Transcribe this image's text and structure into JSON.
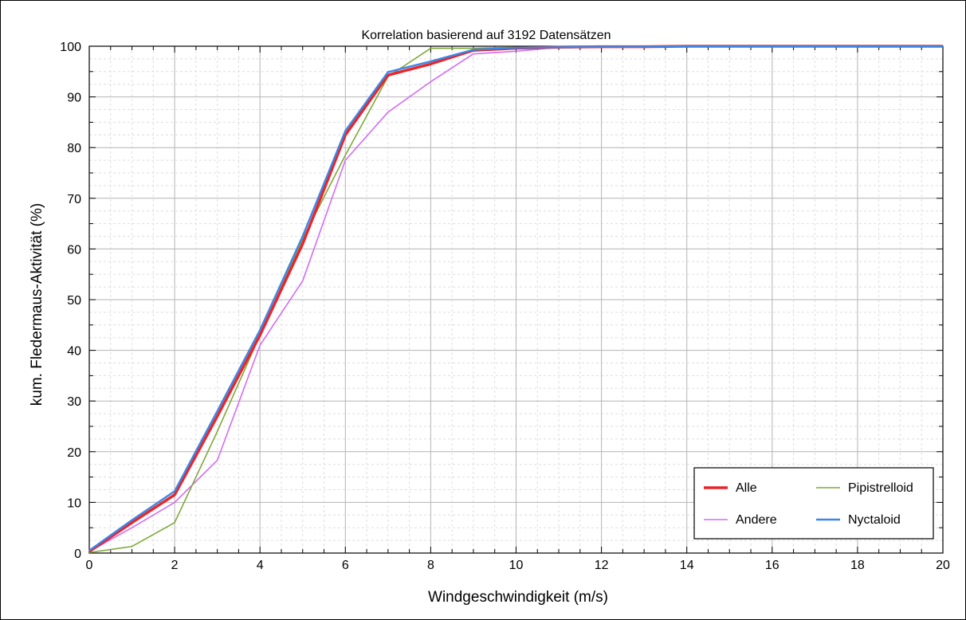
{
  "chart_data": {
    "type": "line",
    "title": "Korrelation basierend auf 3192 Datensätzen",
    "xlabel": "Windgeschwindigkeit (m/s)",
    "ylabel": "kum. Fledermaus-Aktivität (%)",
    "xlim": [
      0,
      20
    ],
    "ylim": [
      0,
      100
    ],
    "x_ticks": [
      0,
      2,
      4,
      6,
      8,
      10,
      12,
      14,
      16,
      18,
      20
    ],
    "y_ticks": [
      0,
      10,
      20,
      30,
      40,
      50,
      60,
      70,
      80,
      90,
      100
    ],
    "x_tick_labels": [
      "0",
      "2",
      "4",
      "6",
      "8",
      "10",
      "12",
      "14",
      "16",
      "18",
      "20"
    ],
    "y_tick_labels": [
      "0",
      "10",
      "20",
      "30",
      "40",
      "50",
      "60",
      "70",
      "80",
      "90",
      "100"
    ],
    "grid": true,
    "legend_position": "bottom-right",
    "series": [
      {
        "name": "Alle",
        "color": "#e8262a",
        "points": [
          [
            0,
            0.3
          ],
          [
            1,
            6
          ],
          [
            2,
            11.5
          ],
          [
            3,
            27
          ],
          [
            4,
            43
          ],
          [
            5,
            61
          ],
          [
            6,
            82.5
          ],
          [
            7,
            94.3
          ],
          [
            8,
            96.5
          ],
          [
            9,
            99.2
          ],
          [
            10,
            99.6
          ],
          [
            11,
            99.8
          ],
          [
            12,
            99.9
          ],
          [
            13,
            99.9
          ],
          [
            14,
            100
          ],
          [
            16,
            100
          ],
          [
            18,
            100
          ],
          [
            20,
            100
          ]
        ]
      },
      {
        "name": "Pipistrelloid",
        "color": "#7fa83a",
        "points": [
          [
            0,
            0.1
          ],
          [
            1,
            1.3
          ],
          [
            2,
            6
          ],
          [
            3,
            24
          ],
          [
            4,
            43
          ],
          [
            5,
            62
          ],
          [
            6,
            78.5
          ],
          [
            7,
            94
          ],
          [
            8,
            99.6
          ],
          [
            9,
            99.6
          ],
          [
            10,
            99.8
          ],
          [
            11,
            99.9
          ],
          [
            12,
            99.9
          ],
          [
            13,
            99.9
          ],
          [
            14,
            100
          ],
          [
            16,
            100
          ],
          [
            18,
            100
          ],
          [
            20,
            100
          ]
        ]
      },
      {
        "name": "Andere",
        "color": "#d36cf5",
        "points": [
          [
            0,
            0.3
          ],
          [
            1,
            5
          ],
          [
            2,
            10
          ],
          [
            3,
            18.3
          ],
          [
            4,
            41
          ],
          [
            5,
            53.7
          ],
          [
            6,
            77.5
          ],
          [
            7,
            87
          ],
          [
            8,
            93
          ],
          [
            9,
            98.5
          ],
          [
            10,
            99
          ],
          [
            11,
            99.8
          ],
          [
            12,
            99.8
          ],
          [
            13,
            99.9
          ],
          [
            14,
            100
          ],
          [
            16,
            100
          ],
          [
            18,
            100
          ],
          [
            20,
            100
          ]
        ]
      },
      {
        "name": "Nyctaloid",
        "color": "#3b86e8",
        "points": [
          [
            0,
            0.5
          ],
          [
            1,
            6.5
          ],
          [
            2,
            12.2
          ],
          [
            3,
            28
          ],
          [
            4,
            44
          ],
          [
            5,
            62.5
          ],
          [
            6,
            83.3
          ],
          [
            7,
            94.9
          ],
          [
            8,
            97
          ],
          [
            9,
            99.3
          ],
          [
            10,
            99.7
          ],
          [
            11,
            99.8
          ],
          [
            12,
            99.9
          ],
          [
            13,
            99.9
          ],
          [
            14,
            100
          ],
          [
            16,
            100
          ],
          [
            18,
            100
          ],
          [
            20,
            100
          ]
        ]
      }
    ],
    "legend_order": [
      "Alle",
      "Pipistrelloid",
      "Andere",
      "Nyctaloid"
    ]
  }
}
